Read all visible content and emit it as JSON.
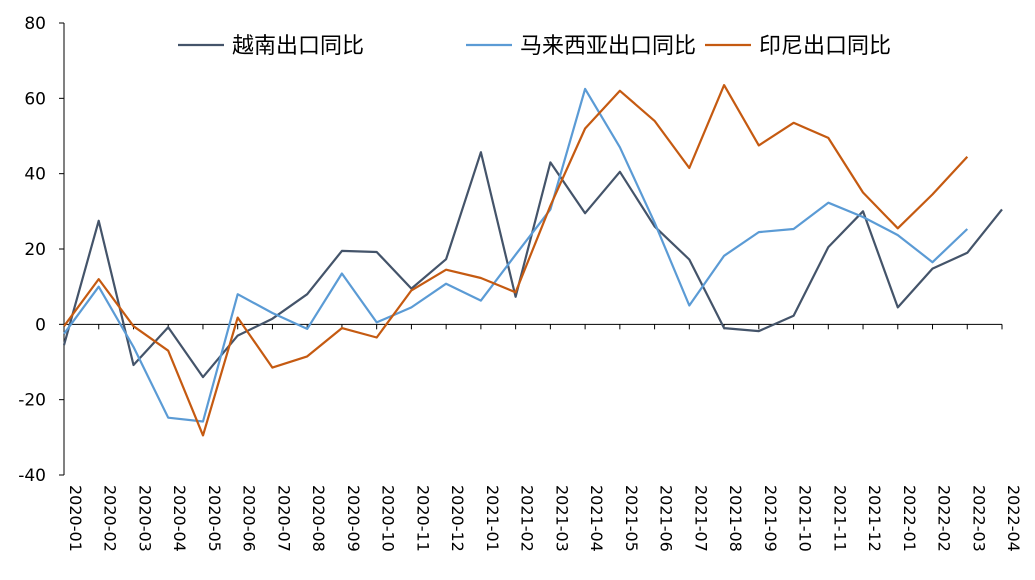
{
  "chart_data": {
    "type": "line",
    "title": "",
    "xlabel": "",
    "ylabel": "",
    "ylim": [
      -40,
      80
    ],
    "yticks": [
      -40,
      -20,
      0,
      20,
      40,
      60,
      80
    ],
    "grid": false,
    "legend_position": "top",
    "categories": [
      "2020-01",
      "2020-02",
      "2020-03",
      "2020-04",
      "2020-05",
      "2020-06",
      "2020-07",
      "2020-08",
      "2020-09",
      "2020-10",
      "2020-11",
      "2020-12",
      "2021-01",
      "2021-02",
      "2021-03",
      "2021-04",
      "2021-05",
      "2021-06",
      "2021-07",
      "2021-08",
      "2021-09",
      "2021-10",
      "2021-11",
      "2021-12",
      "2022-01",
      "2022-02",
      "2022-03",
      "2022-04"
    ],
    "series": [
      {
        "name": "越南出口同比",
        "color": "#44546a",
        "values": [
          -5.5,
          27.5,
          -10.8,
          -0.8,
          -14.0,
          -3.0,
          1.5,
          8.0,
          19.5,
          19.2,
          9.5,
          17.3,
          45.7,
          7.3,
          43.0,
          29.5,
          40.5,
          26.0,
          17.2,
          -1.0,
          -1.8,
          2.3,
          20.5,
          30.0,
          4.5,
          14.8,
          19.0,
          30.5
        ]
      },
      {
        "name": "马来西亚出口同比",
        "color": "#5b9bd5",
        "values": [
          -2.5,
          10.0,
          -6.0,
          -24.8,
          -25.8,
          8.0,
          3.0,
          -1.2,
          13.5,
          0.5,
          4.5,
          10.8,
          6.3,
          18.5,
          30.5,
          62.5,
          47.0,
          27.0,
          5.0,
          18.2,
          24.5,
          25.3,
          32.3,
          28.5,
          23.7,
          16.5,
          25.3,
          null
        ]
      },
      {
        "name": "印尼出口同比",
        "color": "#c55a11",
        "values": [
          -0.5,
          12.0,
          -0.5,
          -7.0,
          -29.5,
          1.8,
          -11.5,
          -8.5,
          -1.0,
          -3.5,
          9.0,
          14.5,
          12.3,
          8.5,
          31.5,
          52.0,
          62.0,
          54.0,
          41.5,
          63.5,
          47.5,
          53.5,
          49.5,
          35.0,
          25.5,
          34.5,
          44.5,
          null
        ]
      }
    ]
  }
}
